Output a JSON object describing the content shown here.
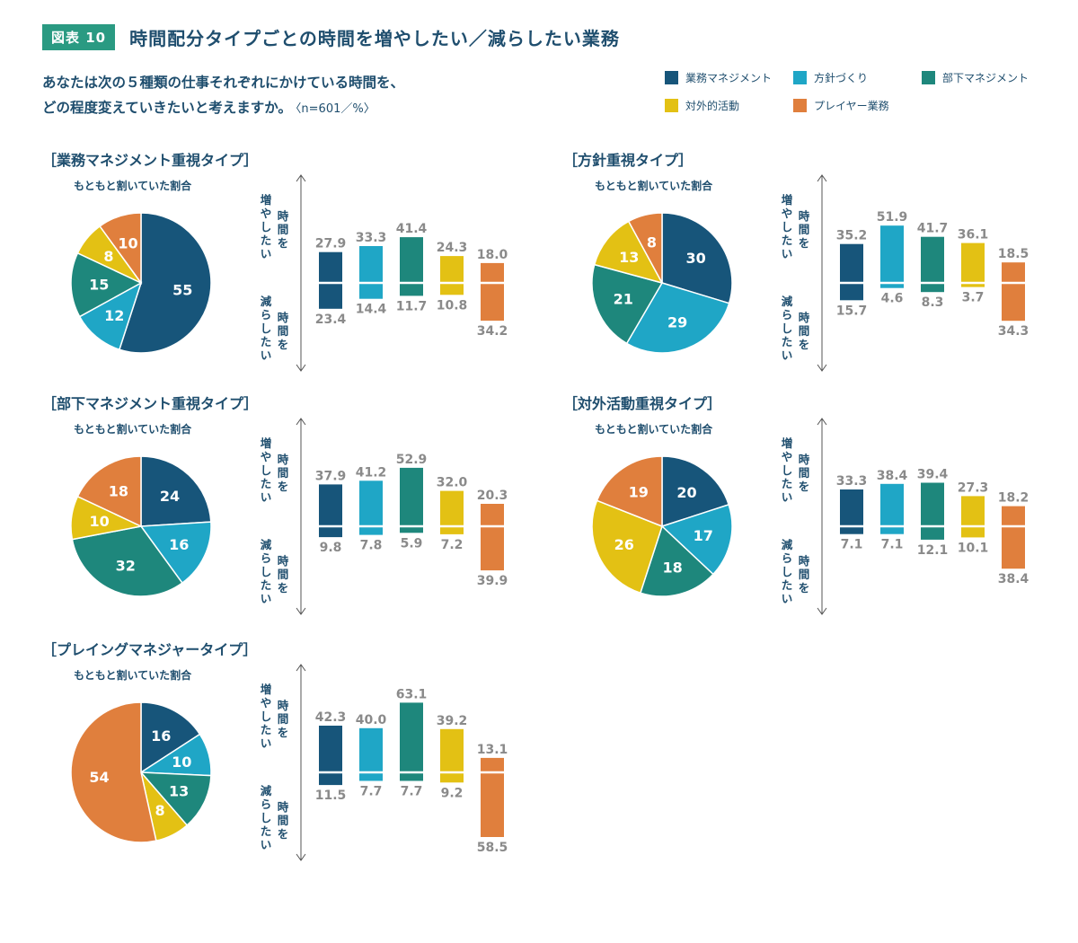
{
  "header": {
    "badge": "図表 10",
    "title": "時間配分タイプごとの時間を増やしたい／減らしたい業務"
  },
  "question": {
    "line1": "あなたは次の５種類の仕事それぞれにかけている時間を、",
    "line2": "どの程度変えていきたいと考えますか。",
    "note": "〈n=601／%〉"
  },
  "colors": {
    "業務マネジメント": "#17557a",
    "方針づくり": "#1fa6c6",
    "部下マネジメント": "#1e877c",
    "対外的活動": "#e3c114",
    "プレイヤー業務": "#e07f3d",
    "text": "#1f4e6e",
    "value_label": "#8a8a8a"
  },
  "legend": [
    {
      "label": "業務マネジメント",
      "color": "#17557a"
    },
    {
      "label": "方針づくり",
      "color": "#1fa6c6"
    },
    {
      "label": "部下マネジメント",
      "color": "#1e877c"
    },
    {
      "label": "対外的活動",
      "color": "#e3c114"
    },
    {
      "label": "プレイヤー業務",
      "color": "#e07f3d"
    }
  ],
  "labels": {
    "pie_subtitle": "もともと割いていた割合",
    "increase_side": [
      "時",
      "間",
      "を",
      "増",
      "や",
      "し",
      "た",
      "い"
    ],
    "decrease_side": [
      "時",
      "間",
      "を",
      "減",
      "ら",
      "し",
      "た",
      "い"
    ]
  },
  "chart_data": [
    {
      "title": "［業務マネジメント重視タイプ］",
      "type": "pie+bar",
      "categories": [
        "業務マネジメント",
        "方針づくり",
        "部下マネジメント",
        "対外的活動",
        "プレイヤー業務"
      ],
      "pie_values": [
        55,
        12,
        15,
        8,
        10
      ],
      "increase": [
        27.9,
        33.3,
        41.4,
        24.3,
        18.0
      ],
      "decrease": [
        23.4,
        14.4,
        11.7,
        10.8,
        34.2
      ]
    },
    {
      "title": "［方針重視タイプ］",
      "type": "pie+bar",
      "categories": [
        "業務マネジメント",
        "方針づくり",
        "部下マネジメント",
        "対外的活動",
        "プレイヤー業務"
      ],
      "pie_values": [
        30,
        29,
        21,
        13,
        8
      ],
      "increase": [
        35.2,
        51.9,
        41.7,
        36.1,
        18.5
      ],
      "decrease": [
        15.7,
        4.6,
        8.3,
        3.7,
        34.3
      ]
    },
    {
      "title": "［部下マネジメント重視タイプ］",
      "type": "pie+bar",
      "categories": [
        "業務マネジメント",
        "方針づくり",
        "部下マネジメント",
        "対外的活動",
        "プレイヤー業務"
      ],
      "pie_values": [
        24,
        16,
        32,
        10,
        18
      ],
      "increase": [
        37.9,
        41.2,
        52.9,
        32.0,
        20.3
      ],
      "decrease": [
        9.8,
        7.8,
        5.9,
        7.2,
        39.9
      ]
    },
    {
      "title": "［対外活動重視タイプ］",
      "type": "pie+bar",
      "categories": [
        "業務マネジメント",
        "方針づくり",
        "部下マネジメント",
        "対外的活動",
        "プレイヤー業務"
      ],
      "pie_values": [
        20,
        17,
        18,
        26,
        19
      ],
      "increase": [
        33.3,
        38.4,
        39.4,
        27.3,
        18.2
      ],
      "decrease": [
        7.1,
        7.1,
        12.1,
        10.1,
        38.4
      ]
    },
    {
      "title": "［プレイングマネジャータイプ］",
      "type": "pie+bar",
      "categories": [
        "業務マネジメント",
        "方針づくり",
        "部下マネジメント",
        "対外的活動",
        "プレイヤー業務"
      ],
      "pie_values": [
        16,
        10,
        13,
        8,
        54
      ],
      "increase": [
        42.3,
        40.0,
        63.1,
        39.2,
        13.1
      ],
      "decrease": [
        11.5,
        7.7,
        7.7,
        9.2,
        58.5
      ]
    }
  ]
}
